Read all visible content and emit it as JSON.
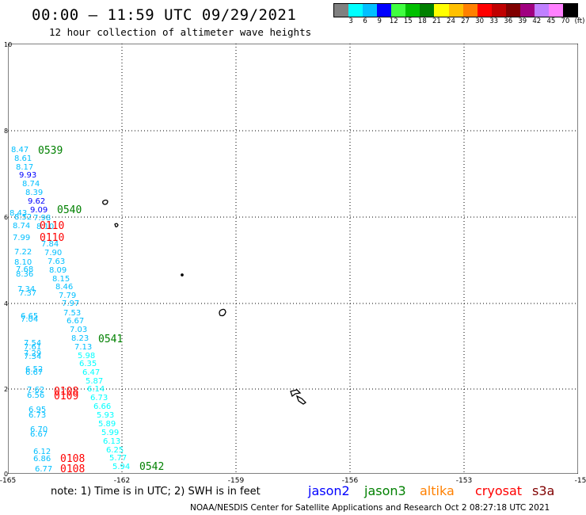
{
  "header": {
    "title": "00:00 – 11:59 UTC 09/29/2021",
    "subtitle": "12 hour collection of altimeter wave heights"
  },
  "legend": {
    "colors": [
      "#808080",
      "#00ffff",
      "#00bfff",
      "#0000ff",
      "#40ff40",
      "#00c000",
      "#008000",
      "#ffff00",
      "#ffc000",
      "#ff8000",
      "#ff0000",
      "#c00000",
      "#800000",
      "#a00080",
      "#c080ff",
      "#ff80ff",
      "#000000"
    ],
    "labels": [
      "3",
      "6",
      "9",
      "12",
      "15",
      "18",
      "21",
      "24",
      "27",
      "30",
      "33",
      "36",
      "39",
      "42",
      "45",
      "70",
      "(ft)"
    ]
  },
  "axes": {
    "y_ticks": [
      "10",
      "8",
      "6",
      "4",
      "2",
      "0"
    ],
    "x_ticks": [
      "-165",
      "-162",
      "-159",
      "-156",
      "-153",
      "-15"
    ]
  },
  "observations": [
    {
      "v": "8.47",
      "c": "#00bfff"
    },
    {
      "v": "8.61",
      "c": "#00bfff"
    },
    {
      "v": "8.17",
      "c": "#00bfff"
    },
    {
      "v": "9.93",
      "c": "#0000ff"
    },
    {
      "v": "8.74",
      "c": "#00bfff"
    },
    {
      "v": "8.39",
      "c": "#00bfff"
    },
    {
      "v": "9.62",
      "c": "#0000ff"
    },
    {
      "v": "9.09",
      "c": "#0000ff"
    },
    {
      "v": "8.43",
      "c": "#00bfff"
    },
    {
      "v": "8.52",
      "c": "#00bfff"
    },
    {
      "v": "7.98",
      "c": "#00bfff"
    },
    {
      "v": "8.74",
      "c": "#00bfff"
    },
    {
      "v": "8.10",
      "c": "#00bfff"
    },
    {
      "v": "7.99",
      "c": "#00bfff"
    },
    {
      "v": "7.84",
      "c": "#00bfff"
    },
    {
      "v": "7.22",
      "c": "#00bfff"
    },
    {
      "v": "7.90",
      "c": "#00bfff"
    },
    {
      "v": "8.10",
      "c": "#00bfff"
    },
    {
      "v": "7.63",
      "c": "#00bfff"
    },
    {
      "v": "7.68",
      "c": "#00bfff"
    },
    {
      "v": "8.09",
      "c": "#00bfff"
    },
    {
      "v": "8.36",
      "c": "#00bfff"
    },
    {
      "v": "8.15",
      "c": "#00bfff"
    },
    {
      "v": "8.46",
      "c": "#00bfff"
    },
    {
      "v": "7.34",
      "c": "#00bfff"
    },
    {
      "v": "7.37",
      "c": "#00bfff"
    },
    {
      "v": "7.79",
      "c": "#00bfff"
    },
    {
      "v": "7.97",
      "c": "#00bfff"
    },
    {
      "v": "7.53",
      "c": "#00bfff"
    },
    {
      "v": "6.65",
      "c": "#00bfff"
    },
    {
      "v": "7.04",
      "c": "#00bfff"
    },
    {
      "v": "6.67",
      "c": "#00bfff"
    },
    {
      "v": "7.03",
      "c": "#00bfff"
    },
    {
      "v": "8.23",
      "c": "#00bfff"
    },
    {
      "v": "7.54",
      "c": "#00bfff"
    },
    {
      "v": "7.61",
      "c": "#00bfff"
    },
    {
      "v": "7.13",
      "c": "#00bfff"
    },
    {
      "v": "7.29",
      "c": "#00bfff"
    },
    {
      "v": "7.34",
      "c": "#00bfff"
    },
    {
      "v": "5.98",
      "c": "#00ffff"
    },
    {
      "v": "6.35",
      "c": "#00ffff"
    },
    {
      "v": "6.52",
      "c": "#00bfff"
    },
    {
      "v": "6.47",
      "c": "#00ffff"
    },
    {
      "v": "6.67",
      "c": "#00bfff"
    },
    {
      "v": "5.87",
      "c": "#00ffff"
    },
    {
      "v": "7.62",
      "c": "#00bfff"
    },
    {
      "v": "6.14",
      "c": "#00ffff"
    },
    {
      "v": "6.56",
      "c": "#00bfff"
    },
    {
      "v": "6.73",
      "c": "#00ffff"
    },
    {
      "v": "6.66",
      "c": "#00ffff"
    },
    {
      "v": "6.95",
      "c": "#00bfff"
    },
    {
      "v": "6.73",
      "c": "#00bfff"
    },
    {
      "v": "5.93",
      "c": "#00ffff"
    },
    {
      "v": "5.89",
      "c": "#00ffff"
    },
    {
      "v": "6.70",
      "c": "#00bfff"
    },
    {
      "v": "6.67",
      "c": "#00bfff"
    },
    {
      "v": "5.99",
      "c": "#00ffff"
    },
    {
      "v": "6.13",
      "c": "#00ffff"
    },
    {
      "v": "6.25",
      "c": "#00ffff"
    },
    {
      "v": "6.12",
      "c": "#00bfff"
    },
    {
      "v": "6.86",
      "c": "#00bfff"
    },
    {
      "v": "5.77",
      "c": "#00ffff"
    },
    {
      "v": "6.77",
      "c": "#00bfff"
    },
    {
      "v": "5.94",
      "c": "#00ffff"
    }
  ],
  "pass_times": [
    {
      "t": "0539",
      "c": "#008000"
    },
    {
      "t": "0540",
      "c": "#008000"
    },
    {
      "t": "0110",
      "c": "#ff0000"
    },
    {
      "t": "0110",
      "c": "#ff0000"
    },
    {
      "t": "0541",
      "c": "#008000"
    },
    {
      "t": "0108",
      "c": "#ff0000"
    },
    {
      "t": "0109",
      "c": "#ff0000"
    },
    {
      "t": "0108",
      "c": "#ff0000"
    },
    {
      "t": "0108",
      "c": "#ff0000"
    },
    {
      "t": "0542",
      "c": "#008000"
    }
  ],
  "footer": {
    "note": "note: 1) Time is in UTC; 2) SWH is in feet",
    "satellites": [
      {
        "name": "jason2",
        "color": "#0000ff"
      },
      {
        "name": "jason3",
        "color": "#008000"
      },
      {
        "name": "altika",
        "color": "#ff8000"
      },
      {
        "name": "cryosat",
        "color": "#ff0000"
      },
      {
        "name": "s3a",
        "color": "#800000"
      }
    ],
    "credit": "NOAA/NESDIS Center for Satellite Applications and Research    Oct  2 08:27:18 UTC 2021"
  }
}
